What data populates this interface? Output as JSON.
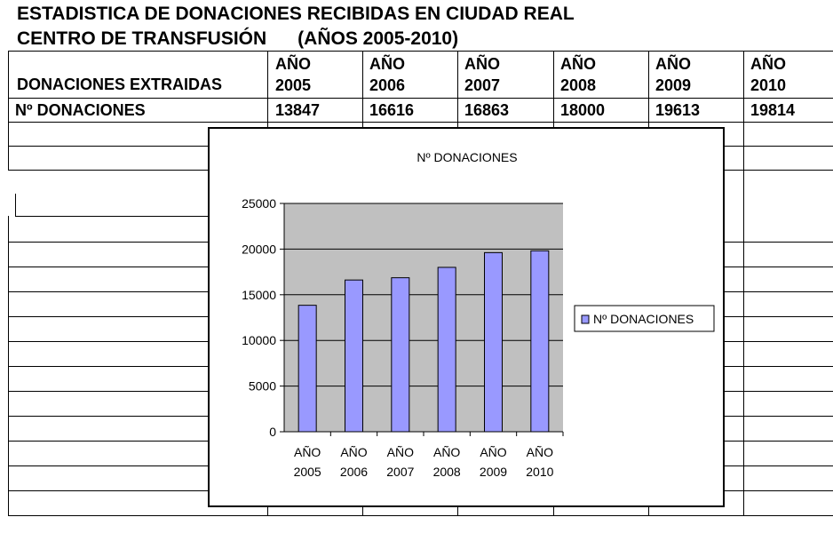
{
  "header": {
    "title_line1": "ESTADISTICA DE DONACIONES RECIBIDAS EN CIUDAD REAL",
    "title_line2": "CENTRO DE TRANSFUSIÓN      (AÑOS 2005-2010)"
  },
  "table": {
    "row_label_header": "DONACIONES EXTRAIDAS",
    "row_label_data": "Nº DONACIONES",
    "columns": [
      {
        "line1": "AÑO",
        "line2": "2005",
        "value": "13847"
      },
      {
        "line1": "AÑO",
        "line2": "2006",
        "value": "16616"
      },
      {
        "line1": "AÑO",
        "line2": "2007",
        "value": "16863"
      },
      {
        "line1": "AÑO",
        "line2": "2008",
        "value": "18000"
      },
      {
        "line1": "AÑO",
        "line2": "2009",
        "value": "19613"
      },
      {
        "line1": "AÑO",
        "line2": "2010",
        "value": "19814"
      }
    ]
  },
  "chart_data": {
    "type": "bar",
    "title": "Nº DONACIONES",
    "categories": [
      [
        "AÑO",
        "2005"
      ],
      [
        "AÑO",
        "2006"
      ],
      [
        "AÑO",
        "2007"
      ],
      [
        "AÑO",
        "2008"
      ],
      [
        "AÑO",
        "2009"
      ],
      [
        "AÑO",
        "2010"
      ]
    ],
    "series": [
      {
        "name": "Nº DONACIONES",
        "values": [
          13847,
          16616,
          16863,
          18000,
          19613,
          19814
        ],
        "color": "#9999ff"
      }
    ],
    "ylim": [
      0,
      25000
    ],
    "yticks": [
      0,
      5000,
      10000,
      15000,
      20000,
      25000
    ],
    "grid": true,
    "plot_background": "#c0c0c0",
    "legend": "right"
  }
}
